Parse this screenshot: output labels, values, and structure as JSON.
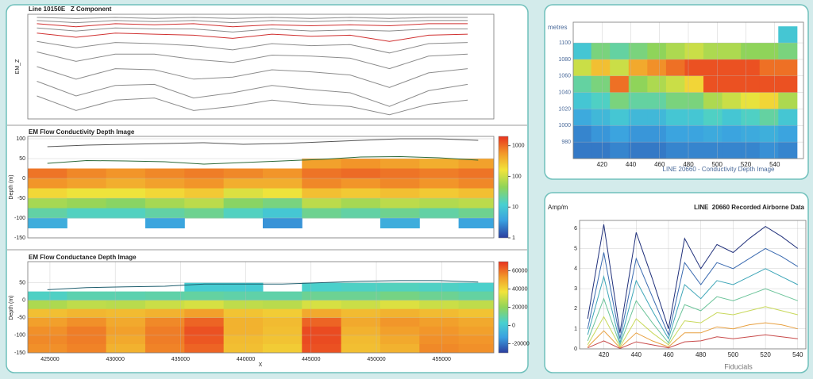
{
  "chart_data": [
    {
      "type": "line",
      "title": "Line 10150E   Z Component",
      "ylabel": "EM_Z",
      "xlim": [
        423300,
        459000
      ],
      "ylim": [
        0,
        100
      ],
      "x": [
        424000,
        427000,
        430000,
        433000,
        436000,
        439000,
        442000,
        445000,
        448000,
        451000,
        454000,
        457000
      ],
      "series": [
        {
          "color": "#8c8c8c",
          "values": [
            97,
            96,
            97,
            96,
            97,
            96,
            97,
            96,
            97,
            96,
            97,
            97
          ]
        },
        {
          "color": "#8c8c8c",
          "values": [
            94,
            92,
            94,
            93,
            94,
            92,
            94,
            93,
            94,
            93,
            94,
            94
          ]
        },
        {
          "color": "#d03030",
          "values": [
            91,
            88,
            91,
            90,
            91,
            88,
            90,
            89,
            90,
            89,
            91,
            91
          ]
        },
        {
          "color": "#8c8c8c",
          "values": [
            87,
            84,
            87,
            86,
            86,
            83,
            86,
            84,
            85,
            84,
            86,
            86
          ]
        },
        {
          "color": "#d03030",
          "values": [
            82,
            78,
            82,
            81,
            80,
            77,
            81,
            79,
            80,
            74,
            80,
            81
          ]
        },
        {
          "color": "#8c8c8c",
          "values": [
            74,
            68,
            73,
            72,
            70,
            66,
            72,
            70,
            71,
            63,
            72,
            73
          ]
        },
        {
          "color": "#8c8c8c",
          "values": [
            64,
            55,
            62,
            62,
            57,
            54,
            61,
            60,
            58,
            48,
            60,
            62
          ]
        },
        {
          "color": "#8c8c8c",
          "values": [
            50,
            38,
            48,
            47,
            38,
            40,
            47,
            45,
            42,
            30,
            44,
            48
          ]
        },
        {
          "color": "#8c8c8c",
          "values": [
            36,
            22,
            32,
            33,
            20,
            25,
            32,
            28,
            25,
            12,
            27,
            33
          ]
        },
        {
          "color": "#8c8c8c",
          "values": [
            22,
            8,
            18,
            20,
            8,
            12,
            18,
            14,
            12,
            4,
            14,
            18
          ]
        }
      ]
    },
    {
      "type": "heatmap",
      "title": "EM Flow Conductivity Depth Image",
      "ylabel": "Depth (m)",
      "xlim": [
        423300,
        459000
      ],
      "ylim": [
        -150,
        106
      ],
      "yticks": [
        100,
        50,
        0,
        -50,
        -100,
        -150
      ],
      "grid": true,
      "zlim": [
        1,
        2000
      ],
      "zscale": "log",
      "zticks": [
        1000,
        100,
        10,
        1
      ],
      "x": [
        424800,
        427800,
        430800,
        433800,
        436800,
        439800,
        442800,
        445800,
        448800,
        451800,
        454800,
        457800
      ],
      "y": [
        37.5,
        12.5,
        -12.5,
        -37.5,
        -62.5,
        -87.5,
        -112.5,
        -137.5
      ],
      "z": [
        [
          null,
          null,
          null,
          null,
          null,
          null,
          null,
          500,
          600,
          500,
          400,
          500
        ],
        [
          900,
          700,
          600,
          700,
          800,
          700,
          600,
          900,
          1000,
          900,
          800,
          900
        ],
        [
          600,
          500,
          400,
          500,
          600,
          400,
          400,
          700,
          600,
          700,
          600,
          700
        ],
        [
          200,
          150,
          150,
          200,
          250,
          120,
          150,
          300,
          250,
          300,
          250,
          300
        ],
        [
          60,
          50,
          40,
          60,
          80,
          40,
          30,
          80,
          60,
          80,
          70,
          80
        ],
        [
          20,
          15,
          15,
          20,
          25,
          15,
          10,
          25,
          20,
          25,
          20,
          25
        ],
        [
          5,
          null,
          null,
          4,
          null,
          null,
          3,
          null,
          null,
          5,
          null,
          4
        ],
        [
          null,
          null,
          null,
          null,
          null,
          null,
          null,
          null,
          null,
          null,
          null,
          null
        ]
      ],
      "series": [
        {
          "color": "#555555",
          "values": [
            80,
            84,
            86,
            88,
            90,
            86,
            88,
            92,
            96,
            100,
            100,
            96
          ]
        },
        {
          "color": "#2d6b3a",
          "values": [
            38,
            45,
            44,
            42,
            36,
            40,
            44,
            48,
            54,
            55,
            52,
            46
          ]
        }
      ]
    },
    {
      "type": "heatmap",
      "title": "EM Flow Conductance Depth Image",
      "ylabel": "Depth (m)",
      "xlabel": "X",
      "xlim": [
        423300,
        459000
      ],
      "ylim": [
        -150,
        110
      ],
      "grid": true,
      "xticks": [
        425000,
        430000,
        435000,
        440000,
        445000,
        450000,
        455000
      ],
      "yticks": [
        50,
        0,
        -50,
        -100,
        -150
      ],
      "zlim": [
        -30000,
        70000
      ],
      "zticks": [
        60000,
        40000,
        20000,
        0,
        -20000
      ],
      "x": [
        424800,
        427800,
        430800,
        433800,
        436800,
        439800,
        442800,
        445800,
        448800,
        451800,
        454800,
        457800
      ],
      "y": [
        37.5,
        12.5,
        -12.5,
        -37.5,
        -62.5,
        -87.5,
        -112.5,
        -137.5
      ],
      "z": [
        [
          null,
          null,
          null,
          null,
          2000,
          2000,
          null,
          4000,
          5000,
          6000,
          5000,
          4000
        ],
        [
          5000,
          8000,
          8000,
          9000,
          10000,
          9000,
          9000,
          12000,
          12000,
          14000,
          12000,
          10000
        ],
        [
          25000,
          28000,
          27000,
          30000,
          32000,
          28000,
          27000,
          32000,
          30000,
          33000,
          30000,
          28000
        ],
        [
          45000,
          47000,
          46000,
          48000,
          52000,
          44000,
          42000,
          50000,
          46000,
          48000,
          46000,
          44000
        ],
        [
          52000,
          55000,
          50000,
          56000,
          62000,
          48000,
          46000,
          62000,
          50000,
          54000,
          52000,
          50000
        ],
        [
          55000,
          58000,
          52000,
          58000,
          65000,
          48000,
          45000,
          66000,
          48000,
          52000,
          54000,
          52000
        ],
        [
          56000,
          58000,
          50000,
          58000,
          64000,
          46000,
          44000,
          66000,
          46000,
          50000,
          55000,
          54000
        ],
        [
          55000,
          57000,
          48000,
          57000,
          62000,
          45000,
          42000,
          65000,
          45000,
          48000,
          56000,
          55000
        ]
      ],
      "series": [
        {
          "color": "#1e5e6e",
          "values": [
            30,
            36,
            38,
            40,
            46,
            46,
            46,
            50,
            54,
            56,
            56,
            52
          ]
        }
      ]
    },
    {
      "type": "heatmap",
      "ylabel": "metres",
      "caption": "LINE 20660 - Conductivity Depth Image",
      "xlim": [
        400,
        560
      ],
      "ylim": [
        960,
        1125
      ],
      "grid": true,
      "xticks": [
        420,
        440,
        460,
        480,
        500,
        520,
        540
      ],
      "yticks": [
        1100,
        1080,
        1060,
        1040,
        1020,
        1000,
        980
      ],
      "zlim": [
        0,
        100
      ],
      "x": [
        406,
        419,
        432,
        445,
        458,
        471,
        484,
        497,
        510,
        523,
        536,
        549
      ],
      "y": [
        1110,
        1090,
        1070,
        1050,
        1030,
        1010,
        990,
        970
      ],
      "z": [
        [
          null,
          null,
          null,
          null,
          null,
          null,
          null,
          null,
          null,
          null,
          null,
          30
        ],
        [
          30,
          45,
          40,
          45,
          50,
          55,
          60,
          55,
          55,
          50,
          50,
          45
        ],
        [
          60,
          75,
          60,
          80,
          85,
          90,
          95,
          95,
          95,
          95,
          90,
          90
        ],
        [
          40,
          45,
          90,
          50,
          55,
          60,
          70,
          95,
          95,
          95,
          95,
          95
        ],
        [
          30,
          35,
          45,
          40,
          40,
          45,
          45,
          55,
          60,
          65,
          70,
          55
        ],
        [
          20,
          25,
          30,
          25,
          25,
          30,
          30,
          35,
          30,
          35,
          40,
          30
        ],
        [
          12,
          15,
          18,
          15,
          15,
          18,
          18,
          20,
          18,
          20,
          22,
          18
        ],
        [
          10,
          10,
          12,
          10,
          10,
          12,
          12,
          12,
          12,
          12,
          14,
          12
        ]
      ]
    },
    {
      "type": "line",
      "title": "LINE  20660 Recorded Airborne Data",
      "ylabel": "Amp/m",
      "xlabel": "Fiducials",
      "xlim": [
        405,
        545
      ],
      "ylim": [
        0,
        6.4
      ],
      "grid": true,
      "xticks": [
        420,
        440,
        460,
        480,
        500,
        520,
        540
      ],
      "yticks": [
        0,
        1,
        2,
        3,
        4,
        5,
        6
      ],
      "x": [
        410,
        420,
        430,
        440,
        450,
        460,
        470,
        480,
        490,
        500,
        510,
        520,
        530,
        540
      ],
      "series": [
        {
          "color": "#1f2f7a",
          "values": [
            1.5,
            6.2,
            0.8,
            5.8,
            3.5,
            1.0,
            5.5,
            4.0,
            5.2,
            4.8,
            5.5,
            6.1,
            5.6,
            5.0
          ]
        },
        {
          "color": "#3a6ab0",
          "values": [
            1.0,
            4.8,
            0.5,
            4.5,
            2.6,
            0.7,
            4.3,
            3.2,
            4.3,
            4.0,
            4.5,
            5.0,
            4.6,
            4.1
          ]
        },
        {
          "color": "#3ea6b8",
          "values": [
            0.7,
            3.6,
            0.3,
            3.4,
            1.9,
            0.5,
            3.2,
            2.5,
            3.4,
            3.2,
            3.6,
            4.0,
            3.6,
            3.2
          ]
        },
        {
          "color": "#6cc49a",
          "values": [
            0.4,
            2.5,
            0.2,
            2.4,
            1.3,
            0.3,
            2.2,
            1.9,
            2.6,
            2.4,
            2.7,
            3.0,
            2.7,
            2.4
          ]
        },
        {
          "color": "#c8d85a",
          "values": [
            0.2,
            1.6,
            0.1,
            1.5,
            0.8,
            0.2,
            1.4,
            1.3,
            1.8,
            1.7,
            1.9,
            2.1,
            1.9,
            1.7
          ]
        },
        {
          "color": "#e8a040",
          "values": [
            0.1,
            0.9,
            0.05,
            0.8,
            0.4,
            0.1,
            0.8,
            0.8,
            1.1,
            1.0,
            1.2,
            1.3,
            1.2,
            1.0
          ]
        },
        {
          "color": "#c84a4a",
          "values": [
            0.05,
            0.4,
            0.02,
            0.35,
            0.2,
            0.05,
            0.35,
            0.4,
            0.6,
            0.5,
            0.6,
            0.7,
            0.6,
            0.5
          ]
        }
      ]
    }
  ]
}
